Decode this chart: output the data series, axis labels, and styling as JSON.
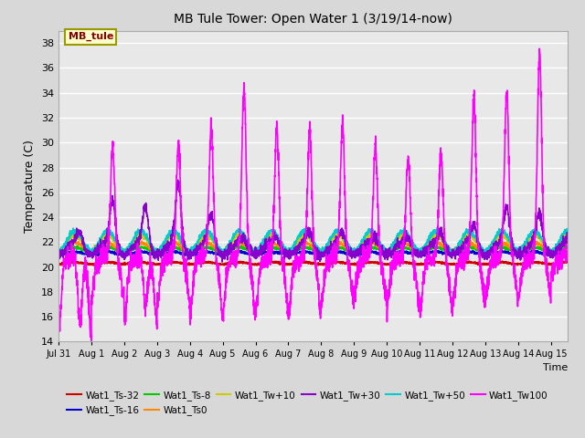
{
  "title": "MB Tule Tower: Open Water 1 (3/19/14-now)",
  "xlabel": "Time",
  "ylabel": "Temperature (C)",
  "ylim": [
    14,
    39
  ],
  "yticks": [
    14,
    16,
    18,
    20,
    22,
    24,
    26,
    28,
    30,
    32,
    34,
    36,
    38
  ],
  "xlim_days": [
    0,
    15.5
  ],
  "xtick_labels": [
    "Jul 31",
    "Aug 1",
    "Aug 2",
    "Aug 3",
    "Aug 4",
    "Aug 5",
    "Aug 6",
    "Aug 7",
    "Aug 8",
    "Aug 9",
    "Aug 10",
    "Aug 11",
    "Aug 12",
    "Aug 13",
    "Aug 14",
    "Aug 15"
  ],
  "xtick_positions": [
    0,
    1,
    2,
    3,
    4,
    5,
    6,
    7,
    8,
    9,
    10,
    11,
    12,
    13,
    14,
    15
  ],
  "series": {
    "Wat1_Ts-32": {
      "color": "#cc0000",
      "lw": 1.2
    },
    "Wat1_Ts-16": {
      "color": "#0000cc",
      "lw": 1.2
    },
    "Wat1_Ts-8": {
      "color": "#00cc00",
      "lw": 1.2
    },
    "Wat1_Ts0": {
      "color": "#ff8800",
      "lw": 1.2
    },
    "Wat1_Tw+10": {
      "color": "#cccc00",
      "lw": 1.2
    },
    "Wat1_Tw+30": {
      "color": "#8800cc",
      "lw": 1.2
    },
    "Wat1_Tw+50": {
      "color": "#00cccc",
      "lw": 1.2
    },
    "Wat1_Tw100": {
      "color": "#ff00ff",
      "lw": 1.2
    }
  },
  "fig_bg": "#d8d8d8",
  "plot_bg": "#e8e8e8",
  "grid_color": "#ffffff",
  "label_box_color": "#ffffcc",
  "label_box_edge": "#999900",
  "label_text": "MB_tule",
  "label_text_color": "#880000"
}
